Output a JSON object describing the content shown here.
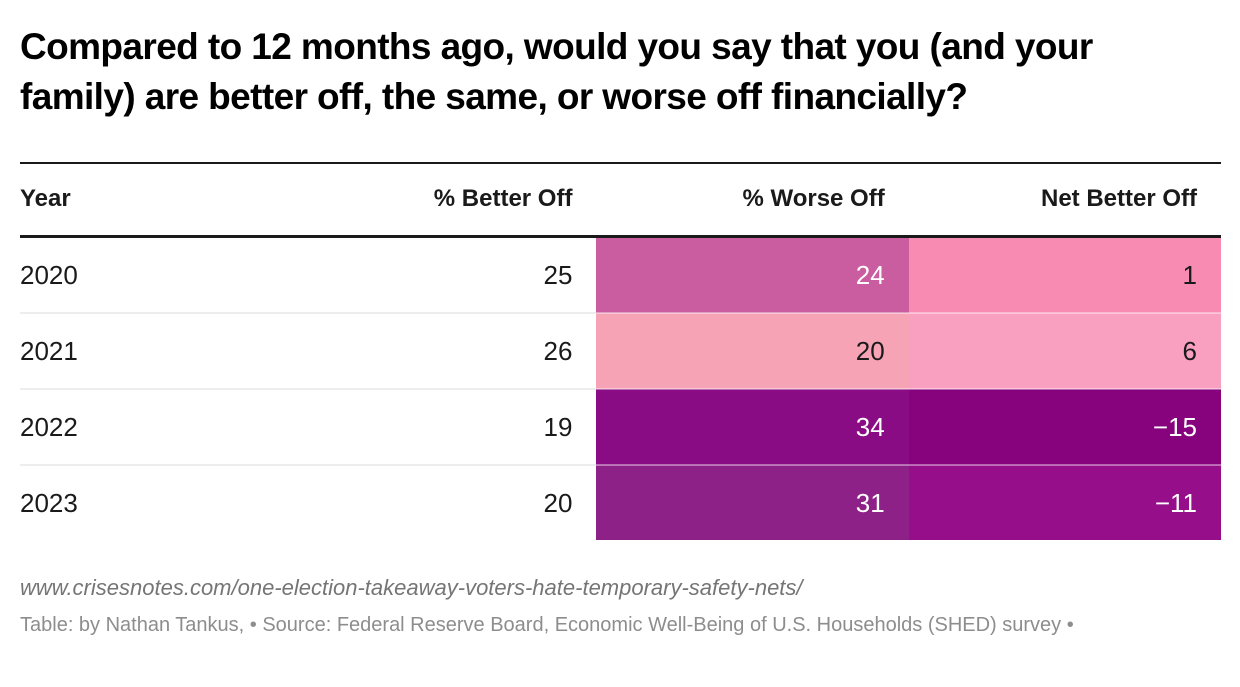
{
  "title": "Compared to 12 months ago, would you say that you (and your family) are better off, the same, or worse off financially?",
  "table": {
    "columns": [
      "Year",
      "% Better Off",
      "% Worse Off",
      "Net Better Off"
    ],
    "rows": [
      {
        "year": "2020",
        "better": "25",
        "worse": {
          "value": "24",
          "bg": "#c95d9f",
          "fg": "#ffffff"
        },
        "net": {
          "value": "1",
          "bg": "#f78bb1",
          "fg": "#1a1a1a"
        }
      },
      {
        "year": "2021",
        "better": "26",
        "worse": {
          "value": "20",
          "bg": "#f6a3b5",
          "fg": "#1a1a1a"
        },
        "net": {
          "value": "6",
          "bg": "#f9a0c1",
          "fg": "#1a1a1a"
        }
      },
      {
        "year": "2022",
        "better": "19",
        "worse": {
          "value": "34",
          "bg": "#8a0c84",
          "fg": "#ffffff"
        },
        "net": {
          "value": "−15",
          "bg": "#87037e",
          "fg": "#ffffff"
        }
      },
      {
        "year": "2023",
        "better": "20",
        "worse": {
          "value": "31",
          "bg": "#8e2187",
          "fg": "#ffffff"
        },
        "net": {
          "value": "−11",
          "bg": "#970e8a",
          "fg": "#ffffff"
        }
      }
    ]
  },
  "footer": {
    "url": "www.crisesnotes.com/one-election-takeaway-voters-hate-temporary-safety-nets/",
    "credits": "Table: by Nathan Tankus,  • Source: Federal Reserve Board, Economic Well-Being of U.S. Households (SHED) survey  •"
  },
  "colors": {
    "rule": "#1a1a1a",
    "row_separator": "#ededed",
    "footer_url": "#757575",
    "footer_credits": "#8d8d8d"
  },
  "chart_data": {
    "type": "table",
    "title": "Compared to 12 months ago, would you say that you (and your family) are better off, the same, or worse off financially?",
    "columns": [
      "Year",
      "% Better Off",
      "% Worse Off",
      "Net Better Off"
    ],
    "rows": [
      {
        "year": 2020,
        "better_off_pct": 25,
        "worse_off_pct": 24,
        "net_better_off": 1
      },
      {
        "year": 2021,
        "better_off_pct": 26,
        "worse_off_pct": 20,
        "net_better_off": 6
      },
      {
        "year": 2022,
        "better_off_pct": 19,
        "worse_off_pct": 34,
        "net_better_off": -15
      },
      {
        "year": 2023,
        "better_off_pct": 20,
        "worse_off_pct": 31,
        "net_better_off": -11
      }
    ],
    "layout_hints": {
      "heatmap_columns": [
        "% Worse Off",
        "Net Better Off"
      ],
      "heatmap_scale": "pink (good) to dark purple (bad)",
      "numeric_alignment": "right"
    }
  }
}
